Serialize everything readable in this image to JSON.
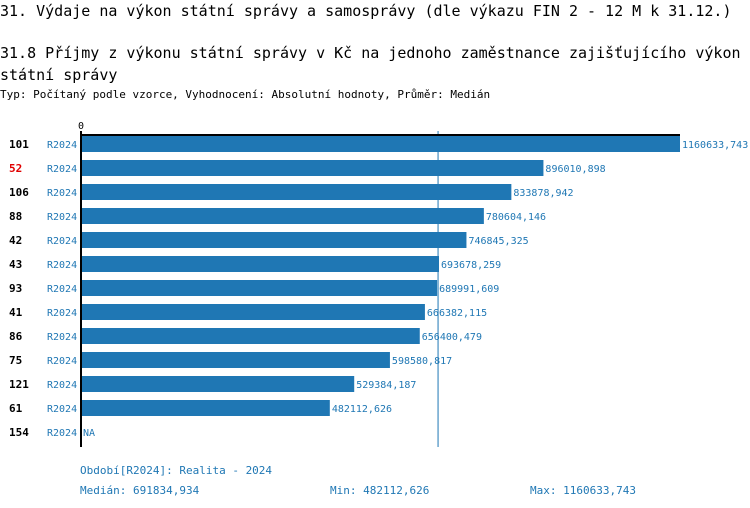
{
  "header": {
    "section_title": "31. Výdaje na výkon státní správy a samosprávy (dle výkazu FIN 2 - 12 M k 31.12.)",
    "chart_title": "31.8 Příjmy z výkonu státní správy v Kč na jednoho zaměstnance zajišťujícího výkon státní správy",
    "subtitle": "Typ: Počítaný podle vzorce, Vyhodnocení: Absolutní hodnoty, Průměr: Medián"
  },
  "chart_data": {
    "type": "bar",
    "orientation": "horizontal",
    "x_tick": "0",
    "xlim": [
      0,
      1160633.743
    ],
    "rows": [
      {
        "id": "101",
        "period": "R2024",
        "value": 1160633.743,
        "label": "1160633,743"
      },
      {
        "id": "52",
        "period": "R2024",
        "value": 896010.898,
        "label": "896010,898",
        "highlight": true
      },
      {
        "id": "106",
        "period": "R2024",
        "value": 833878.942,
        "label": "833878,942"
      },
      {
        "id": "88",
        "period": "R2024",
        "value": 780604.146,
        "label": "780604,146"
      },
      {
        "id": "42",
        "period": "R2024",
        "value": 746845.325,
        "label": "746845,325"
      },
      {
        "id": "43",
        "period": "R2024",
        "value": 693678.259,
        "label": "693678,259"
      },
      {
        "id": "93",
        "period": "R2024",
        "value": 689991.609,
        "label": "689991,609"
      },
      {
        "id": "41",
        "period": "R2024",
        "value": 666382.115,
        "label": "666382,115"
      },
      {
        "id": "86",
        "period": "R2024",
        "value": 656400.479,
        "label": "656400,479"
      },
      {
        "id": "75",
        "period": "R2024",
        "value": 598580.817,
        "label": "598580,817"
      },
      {
        "id": "121",
        "period": "R2024",
        "value": 529384.187,
        "label": "529384,187"
      },
      {
        "id": "61",
        "period": "R2024",
        "value": 482112.626,
        "label": "482112,626"
      },
      {
        "id": "154",
        "period": "R2024",
        "value": null,
        "label": "NA"
      }
    ],
    "median": 691834.934
  },
  "footer": {
    "period_note": "Období[R2024]: Realita - 2024",
    "median": "Medián: 691834,934",
    "min": "Min: 482112,626",
    "max": "Max: 1160633,743"
  },
  "colors": {
    "bar": "#1f77b4",
    "highlight": "#e00000",
    "text": "#1f77b4"
  }
}
